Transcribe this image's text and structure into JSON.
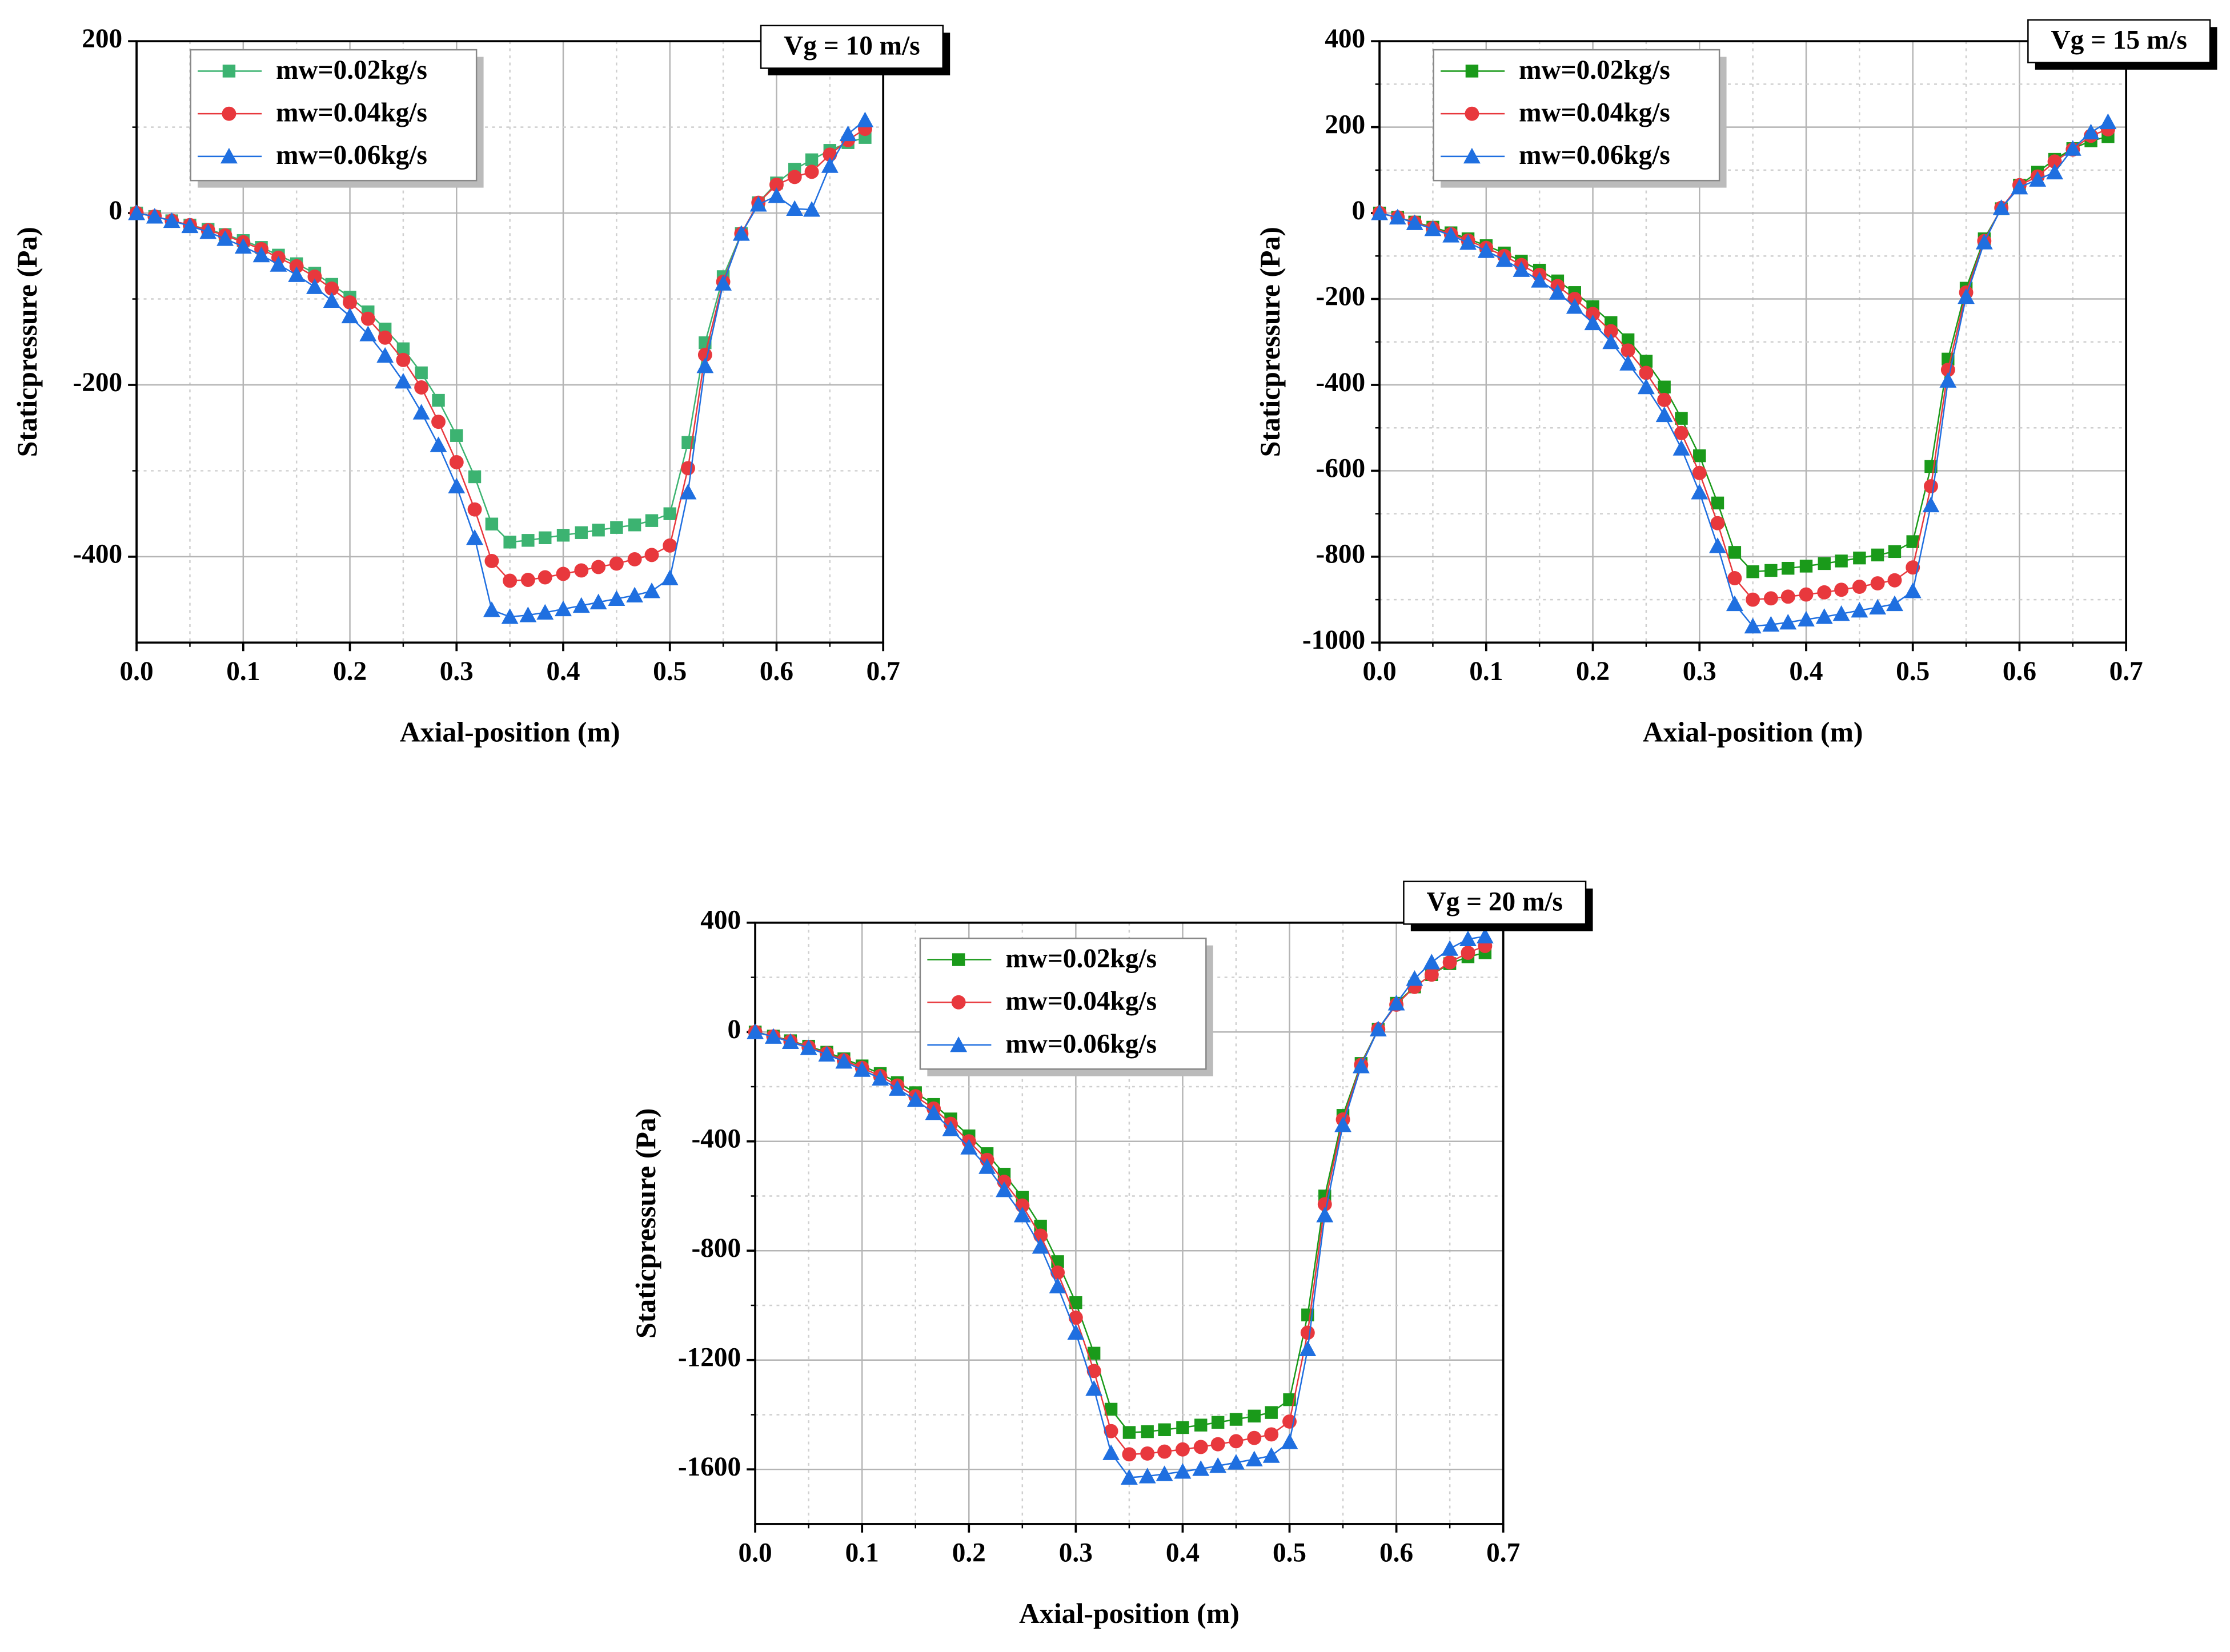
{
  "chart_data": [
    {
      "type": "line",
      "annotation": "Vg = 10 m/s",
      "xlabel": "Axial-position (m)",
      "ylabel": "Staticpressure (Pa)",
      "x": [
        0,
        0.017,
        0.033,
        0.05,
        0.067,
        0.083,
        0.1,
        0.117,
        0.133,
        0.15,
        0.167,
        0.183,
        0.2,
        0.217,
        0.233,
        0.25,
        0.267,
        0.283,
        0.3,
        0.317,
        0.333,
        0.35,
        0.367,
        0.383,
        0.4,
        0.417,
        0.433,
        0.45,
        0.467,
        0.483,
        0.5,
        0.517,
        0.533,
        0.55,
        0.567,
        0.583,
        0.6,
        0.617,
        0.633,
        0.65,
        0.667,
        0.683
      ],
      "series": [
        {
          "name": "mw=0.02kg/s",
          "color": "#3cb371",
          "marker": "square",
          "values": [
            0,
            -4,
            -9,
            -14,
            -19,
            -25,
            -32,
            -40,
            -49,
            -59,
            -70,
            -83,
            -98,
            -115,
            -135,
            -158,
            -186,
            -218,
            -259,
            -307,
            -362,
            -383,
            -381,
            -378,
            -375,
            -372,
            -369,
            -366,
            -363,
            -358,
            -350,
            -267,
            -151,
            -74,
            -24,
            12,
            35,
            51,
            62,
            73,
            82,
            88
          ]
        },
        {
          "name": "mw=0.04kg/s",
          "color": "#e8383d",
          "marker": "circle",
          "values": [
            0,
            -4,
            -9,
            -14,
            -20,
            -26,
            -34,
            -42,
            -52,
            -62,
            -74,
            -88,
            -104,
            -123,
            -145,
            -171,
            -203,
            -243,
            -290,
            -345,
            -405,
            -428,
            -427,
            -424,
            -420,
            -416,
            -412,
            -408,
            -403,
            -398,
            -387,
            -297,
            -165,
            -80,
            -24,
            12,
            33,
            42,
            48,
            68,
            85,
            98
          ]
        },
        {
          "name": "mw=0.06kg/s",
          "color": "#1f6fe0",
          "marker": "triangle",
          "values": [
            0,
            -4,
            -9,
            -15,
            -22,
            -30,
            -39,
            -49,
            -60,
            -72,
            -86,
            -102,
            -120,
            -141,
            -166,
            -196,
            -232,
            -270,
            -318,
            -378,
            -462,
            -470,
            -468,
            -465,
            -461,
            -457,
            -453,
            -449,
            -445,
            -440,
            -425,
            -325,
            -178,
            -82,
            -24,
            10,
            20,
            5,
            4,
            55,
            92,
            108
          ]
        }
      ],
      "xlim": [
        0,
        0.7
      ],
      "xticks": [
        {
          "value": 0,
          "label": "0.0"
        },
        0.1,
        0.2,
        0.3,
        0.4,
        0.5,
        0.6,
        0.7
      ],
      "ylim": [
        -500,
        200
      ],
      "yticks": [
        -400,
        -200,
        0,
        200
      ],
      "grid": true
    },
    {
      "type": "line",
      "annotation": "Vg = 15 m/s",
      "xlabel": "Axial-position (m)",
      "ylabel": "Staticpressure (Pa)",
      "x": [
        0,
        0.017,
        0.033,
        0.05,
        0.067,
        0.083,
        0.1,
        0.117,
        0.133,
        0.15,
        0.167,
        0.183,
        0.2,
        0.217,
        0.233,
        0.25,
        0.267,
        0.283,
        0.3,
        0.317,
        0.333,
        0.35,
        0.367,
        0.383,
        0.4,
        0.417,
        0.433,
        0.45,
        0.467,
        0.483,
        0.5,
        0.517,
        0.533,
        0.55,
        0.567,
        0.583,
        0.6,
        0.617,
        0.633,
        0.65,
        0.667,
        0.683
      ],
      "series": [
        {
          "name": "mw=0.02kg/s",
          "color": "#1a9a1a",
          "marker": "square",
          "values": [
            0,
            -10,
            -21,
            -33,
            -46,
            -60,
            -76,
            -93,
            -112,
            -133,
            -158,
            -185,
            -218,
            -255,
            -295,
            -345,
            -405,
            -478,
            -565,
            -675,
            -790,
            -835,
            -832,
            -827,
            -822,
            -816,
            -810,
            -803,
            -796,
            -788,
            -765,
            -590,
            -340,
            -175,
            -60,
            10,
            65,
            95,
            125,
            150,
            168,
            178
          ]
        },
        {
          "name": "mw=0.04kg/s",
          "color": "#e8383d",
          "marker": "circle",
          "values": [
            0,
            -10,
            -22,
            -35,
            -49,
            -64,
            -81,
            -100,
            -121,
            -144,
            -170,
            -200,
            -235,
            -275,
            -320,
            -372,
            -435,
            -512,
            -605,
            -722,
            -850,
            -900,
            -897,
            -893,
            -888,
            -883,
            -877,
            -870,
            -862,
            -855,
            -825,
            -636,
            -365,
            -185,
            -65,
            12,
            65,
            85,
            120,
            148,
            180,
            195
          ]
        },
        {
          "name": "mw=0.06kg/s",
          "color": "#1f6fe0",
          "marker": "triangle",
          "values": [
            0,
            -10,
            -23,
            -37,
            -52,
            -69,
            -88,
            -109,
            -132,
            -157,
            -185,
            -218,
            -256,
            -300,
            -350,
            -405,
            -470,
            -548,
            -650,
            -775,
            -910,
            -962,
            -958,
            -953,
            -946,
            -940,
            -933,
            -925,
            -918,
            -910,
            -880,
            -680,
            -390,
            -195,
            -68,
            12,
            60,
            78,
            95,
            150,
            188,
            212
          ]
        }
      ],
      "xlim": [
        0,
        0.7
      ],
      "xticks": [
        {
          "value": 0,
          "label": "0.0"
        },
        0.1,
        0.2,
        0.3,
        0.4,
        0.5,
        0.6,
        0.7
      ],
      "ylim": [
        -1000,
        400
      ],
      "yticks": [
        -1000,
        -800,
        -600,
        -400,
        -200,
        0,
        200,
        400
      ],
      "grid": true
    },
    {
      "type": "line",
      "annotation": "Vg = 20 m/s",
      "xlabel": "Axial-position (m)",
      "ylabel": "Staticpressure (Pa)",
      "x": [
        0,
        0.017,
        0.033,
        0.05,
        0.067,
        0.083,
        0.1,
        0.117,
        0.133,
        0.15,
        0.167,
        0.183,
        0.2,
        0.217,
        0.233,
        0.25,
        0.267,
        0.283,
        0.3,
        0.317,
        0.333,
        0.35,
        0.367,
        0.383,
        0.4,
        0.417,
        0.433,
        0.45,
        0.467,
        0.483,
        0.5,
        0.517,
        0.533,
        0.55,
        0.567,
        0.583,
        0.6,
        0.617,
        0.633,
        0.65,
        0.667,
        0.683
      ],
      "series": [
        {
          "name": "mw=0.02kg/s",
          "color": "#1a9a1a",
          "marker": "square",
          "values": [
            0,
            -15,
            -32,
            -52,
            -74,
            -98,
            -124,
            -152,
            -185,
            -222,
            -265,
            -318,
            -380,
            -445,
            -520,
            -605,
            -710,
            -840,
            -990,
            -1175,
            -1380,
            -1465,
            -1462,
            -1455,
            -1447,
            -1438,
            -1428,
            -1417,
            -1405,
            -1392,
            -1345,
            -1035,
            -600,
            -305,
            -115,
            10,
            105,
            165,
            210,
            250,
            275,
            290
          ]
        },
        {
          "name": "mw=0.04kg/s",
          "color": "#e8383d",
          "marker": "circle",
          "values": [
            0,
            -16,
            -34,
            -55,
            -78,
            -103,
            -131,
            -161,
            -196,
            -235,
            -280,
            -336,
            -400,
            -468,
            -548,
            -635,
            -745,
            -880,
            -1045,
            -1240,
            -1460,
            -1545,
            -1542,
            -1535,
            -1527,
            -1518,
            -1508,
            -1497,
            -1485,
            -1472,
            -1425,
            -1100,
            -630,
            -320,
            -120,
            10,
            100,
            165,
            210,
            255,
            290,
            315
          ]
        },
        {
          "name": "mw=0.06kg/s",
          "color": "#1f6fe0",
          "marker": "triangle",
          "values": [
            0,
            -17,
            -36,
            -58,
            -82,
            -108,
            -138,
            -170,
            -207,
            -248,
            -296,
            -355,
            -422,
            -493,
            -578,
            -670,
            -785,
            -930,
            -1100,
            -1305,
            -1540,
            -1630,
            -1625,
            -1617,
            -1608,
            -1598,
            -1587,
            -1575,
            -1563,
            -1550,
            -1500,
            -1160,
            -670,
            -340,
            -125,
            10,
            105,
            195,
            255,
            305,
            340,
            350
          ]
        }
      ],
      "xlim": [
        0,
        0.7
      ],
      "xticks": [
        {
          "value": 0,
          "label": "0.0"
        },
        0.1,
        0.2,
        0.3,
        0.4,
        0.5,
        0.6,
        0.7
      ],
      "ylim": [
        -1800,
        400
      ],
      "yticks": [
        -1600,
        -1200,
        -800,
        -400,
        0,
        400
      ],
      "grid": true
    }
  ]
}
